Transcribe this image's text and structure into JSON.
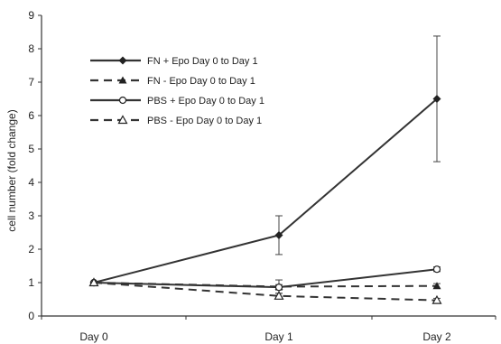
{
  "chart_data": {
    "type": "line",
    "title": "",
    "xlabel": "",
    "ylabel": "cell number   (fold change)",
    "categories": [
      "Day 0",
      "Day 1",
      "Day 2"
    ],
    "yticks": [
      "0",
      "1",
      "2",
      "3",
      "4",
      "5",
      "6",
      "7",
      "8",
      "9"
    ],
    "ylim": [
      0,
      9
    ],
    "grid": false,
    "legend_position": "top-left",
    "series": [
      {
        "name": "FN + Epo Day 0 to Day 1",
        "values": [
          1.0,
          2.42,
          6.5
        ],
        "errors": [
          0,
          0.58,
          1.88
        ],
        "line_style": "solid",
        "marker": "diamond",
        "color": "#333333"
      },
      {
        "name": "FN - Epo Day 0 to Day 1",
        "values": [
          1.0,
          0.88,
          0.9
        ],
        "errors": [
          0,
          0.2,
          0.07
        ],
        "line_style": "dashed",
        "marker": "triangle",
        "color": "#333333"
      },
      {
        "name": "PBS + Epo Day 0 to Day 1",
        "values": [
          1.0,
          0.86,
          1.4
        ],
        "errors": [
          0,
          0.08,
          0.07
        ],
        "line_style": "solid",
        "marker": "circle-open",
        "color": "#333333"
      },
      {
        "name": "PBS - Epo Day 0 to Day 1",
        "values": [
          1.0,
          0.6,
          0.47
        ],
        "errors": [
          0,
          0.08,
          0.06
        ],
        "line_style": "dashed",
        "marker": "triangle-open",
        "color": "#333333"
      }
    ]
  }
}
